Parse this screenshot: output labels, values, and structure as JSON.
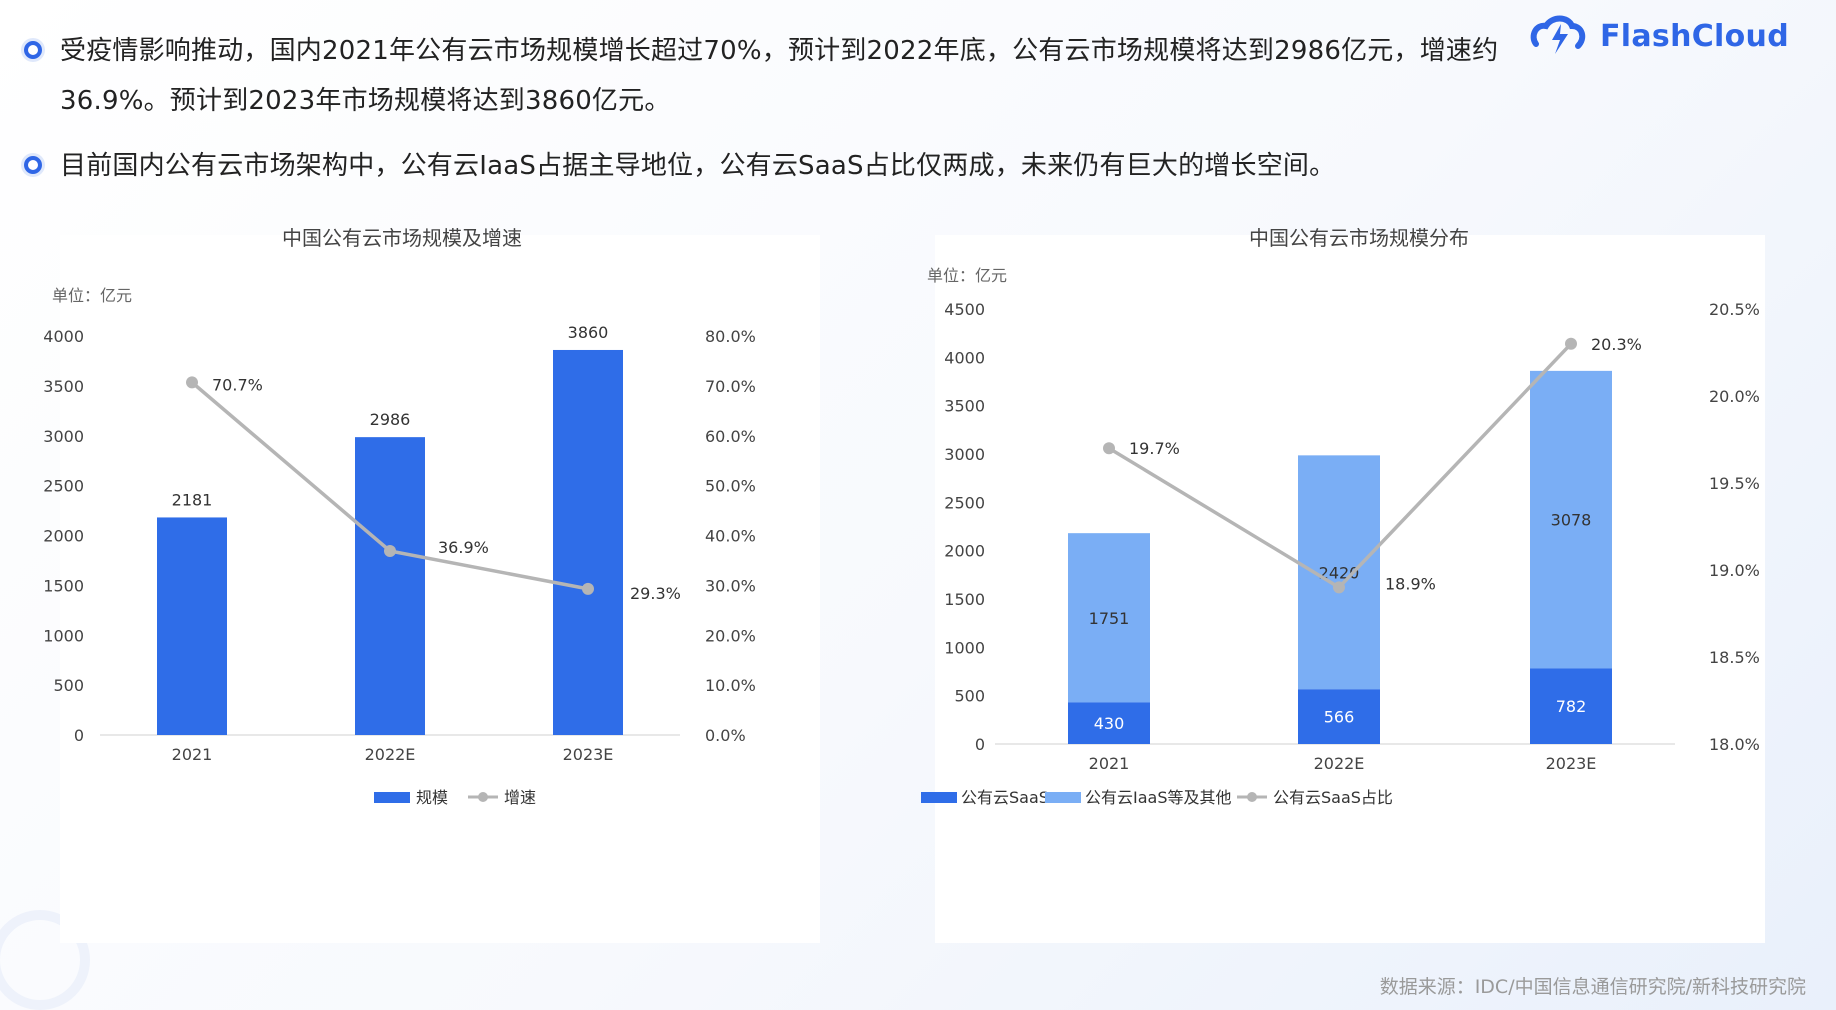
{
  "bullets": [
    "受疫情影响推动，国内2021年公有云市场规模增长超过70%，预计到2022年底，公有云市场规模将达到2986亿元，增速约36.9%。预计到2023年市场规模将达到3860亿元。",
    "目前国内公有云市场架构中，公有云IaaS占据主导地位，公有云SaaS占比仅两成，未来仍有巨大的增长空间。"
  ],
  "logo": {
    "name": "FlashCloud",
    "icon": "flash-cloud-logo-icon"
  },
  "source": "数据来源：IDC/中国信息通信研究院/新科技研究院",
  "colors": {
    "accent": "#2f66e6",
    "bar": "#2f6de8",
    "bar_light": "#7aaef5",
    "line": "#b5b5b5"
  },
  "chart_data": [
    {
      "type": "bar",
      "title": "中国公有云市场规模及增速",
      "unit_label": "单位：亿元",
      "categories": [
        "2021",
        "2022E",
        "2023E"
      ],
      "series": [
        {
          "name": "规模",
          "type": "bar",
          "values": [
            2181,
            2986,
            3860
          ],
          "labels": [
            "2181",
            "2986",
            "3860"
          ]
        },
        {
          "name": "增速",
          "type": "line",
          "axis": "right",
          "values": [
            70.7,
            36.9,
            29.3
          ],
          "labels": [
            "70.7%",
            "36.9%",
            "29.3%"
          ]
        }
      ],
      "ylim": [
        0,
        4000
      ],
      "yticks": [
        "0",
        "500",
        "1000",
        "1500",
        "2000",
        "2500",
        "3000",
        "3500",
        "4000"
      ],
      "y2lim": [
        0,
        80
      ],
      "y2ticks": [
        "0.0%",
        "10.0%",
        "20.0%",
        "30.0%",
        "40.0%",
        "50.0%",
        "60.0%",
        "70.0%",
        "80.0%"
      ],
      "legend": [
        "规模",
        "增速"
      ],
      "legend_position": "bottom"
    },
    {
      "type": "bar",
      "stacked": true,
      "title": "中国公有云市场规模分布",
      "unit_label": "单位：亿元",
      "categories": [
        "2021",
        "2022E",
        "2023E"
      ],
      "series": [
        {
          "name": "公有云SaaS",
          "type": "bar",
          "values": [
            430,
            566,
            782
          ],
          "labels": [
            "430",
            "566",
            "782"
          ]
        },
        {
          "name": "公有云IaaS等及其他",
          "type": "bar",
          "values": [
            1751,
            2420,
            3078
          ],
          "labels": [
            "1751",
            "2420",
            "3078"
          ]
        },
        {
          "name": "公有云SaaS占比",
          "type": "line",
          "axis": "right",
          "values": [
            19.7,
            18.9,
            20.3
          ],
          "labels": [
            "19.7%",
            "18.9%",
            "20.3%"
          ]
        }
      ],
      "ylim": [
        0,
        4500
      ],
      "yticks": [
        "0",
        "500",
        "1000",
        "1500",
        "2000",
        "2500",
        "3000",
        "3500",
        "4000",
        "4500"
      ],
      "y2lim": [
        18,
        20.5
      ],
      "y2ticks": [
        "18.0%",
        "18.5%",
        "19.0%",
        "19.5%",
        "20.0%",
        "20.5%"
      ],
      "legend": [
        "公有云SaaS",
        "公有云IaaS等及其他",
        "公有云SaaS占比"
      ],
      "legend_position": "bottom"
    }
  ]
}
